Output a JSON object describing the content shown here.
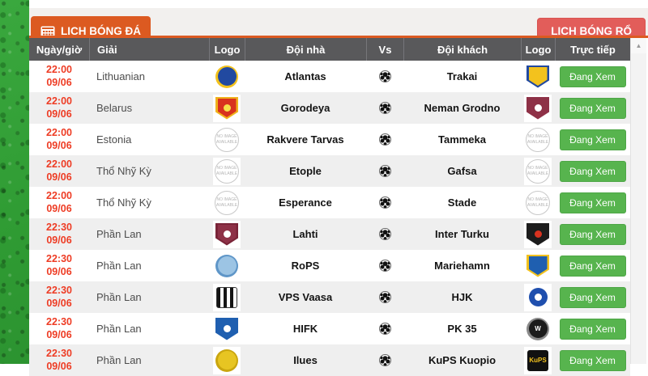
{
  "tabs": {
    "football_label": "LỊCH BÓNG ĐÁ",
    "basketball_label": "LỊCH BÓNG RỔ"
  },
  "colors": {
    "accent_orange": "#dc5a21",
    "basketball_red": "#e25d5a",
    "header_gray": "#59595b",
    "time_red": "#ee3c24",
    "watch_green": "#57b44e",
    "row_alt": "#efefef",
    "grass_green": "#2f9b33"
  },
  "table": {
    "headers": [
      "Ngày/giờ",
      "Giải",
      "Logo",
      "Đội nhà",
      "Vs",
      "Đội khách",
      "Logo",
      "Trực tiếp"
    ],
    "watch_label": "Đang Xem",
    "no_image_text": "NO IMAGE AVAILABLE",
    "rows": [
      {
        "time": "22:00",
        "date": "09/06",
        "league": "Lithuanian",
        "home": "Atlantas",
        "away": "Trakai",
        "home_logo": {
          "style": "circle",
          "c1": "#2149a0",
          "c2": "#f3c21d"
        },
        "away_logo": {
          "style": "shield",
          "c1": "#f3c21d",
          "c2": "#2149a0"
        }
      },
      {
        "time": "22:00",
        "date": "09/06",
        "league": "Belarus",
        "home": "Gorodeya",
        "away": "Neman Grodno",
        "home_logo": {
          "style": "shield",
          "c1": "#d8321f",
          "c2": "#f0b21c",
          "dot": "#f6e04a"
        },
        "away_logo": {
          "style": "shield",
          "c1": "#8e3147",
          "c2": "#8e3147",
          "dot": "#ffffff"
        }
      },
      {
        "time": "22:00",
        "date": "09/06",
        "league": "Estonia",
        "home": "Rakvere Tarvas",
        "away": "Tammeka",
        "home_logo": {
          "style": "noimage"
        },
        "away_logo": {
          "style": "noimage"
        }
      },
      {
        "time": "22:00",
        "date": "09/06",
        "league": "Thổ Nhỹ Kỳ",
        "home": "Etople",
        "away": "Gafsa",
        "home_logo": {
          "style": "noimage"
        },
        "away_logo": {
          "style": "noimage"
        }
      },
      {
        "time": "22:00",
        "date": "09/06",
        "league": "Thổ Nhỹ Kỳ",
        "home": "Esperance",
        "away": "Stade",
        "home_logo": {
          "style": "noimage"
        },
        "away_logo": {
          "style": "noimage"
        }
      },
      {
        "time": "22:30",
        "date": "09/06",
        "league": "Phần Lan",
        "home": "Lahti",
        "away": "Inter Turku",
        "home_logo": {
          "style": "shield",
          "c1": "#8e3147",
          "c2": "#7a2438",
          "dot": "#ffffff"
        },
        "away_logo": {
          "style": "shield",
          "c1": "#1c1c1c",
          "c2": "#1c1c1c",
          "dot": "#d8321f"
        }
      },
      {
        "time": "22:30",
        "date": "09/06",
        "league": "Phần Lan",
        "home": "RoPS",
        "away": "Mariehamn",
        "home_logo": {
          "style": "circle",
          "c1": "#9cc4e4",
          "c2": "#5f96c8"
        },
        "away_logo": {
          "style": "shield",
          "c1": "#1f5fb0",
          "c2": "#f3c21d"
        }
      },
      {
        "time": "22:30",
        "date": "09/06",
        "league": "Phần Lan",
        "home": "VPS Vaasa",
        "away": "HJK",
        "home_logo": {
          "style": "stripes",
          "c1": "#151515",
          "c2": "#ffffff"
        },
        "away_logo": {
          "style": "circle",
          "c1": "#1f4fae",
          "c2": "#ffffff",
          "dot": "#ffffff"
        }
      },
      {
        "time": "22:30",
        "date": "09/06",
        "league": "Phần Lan",
        "home": "HIFK",
        "away": "PK 35",
        "home_logo": {
          "style": "shield",
          "c1": "#1f5fb0",
          "c2": "#1f5fb0",
          "dot": "#ffffff"
        },
        "away_logo": {
          "style": "circle",
          "c1": "#1c1c1c",
          "c2": "#8a8a8a",
          "text": "W",
          "tc": "#ffffff"
        }
      },
      {
        "time": "22:30",
        "date": "09/06",
        "league": "Phần Lan",
        "home": "Ilues",
        "away": "KuPS Kuopio",
        "home_logo": {
          "style": "circle",
          "c1": "#e7c522",
          "c2": "#caa60f"
        },
        "away_logo": {
          "style": "square",
          "c1": "#111111",
          "c2": "#111111",
          "text": "KuPS",
          "tc": "#f3c21d"
        }
      }
    ]
  }
}
